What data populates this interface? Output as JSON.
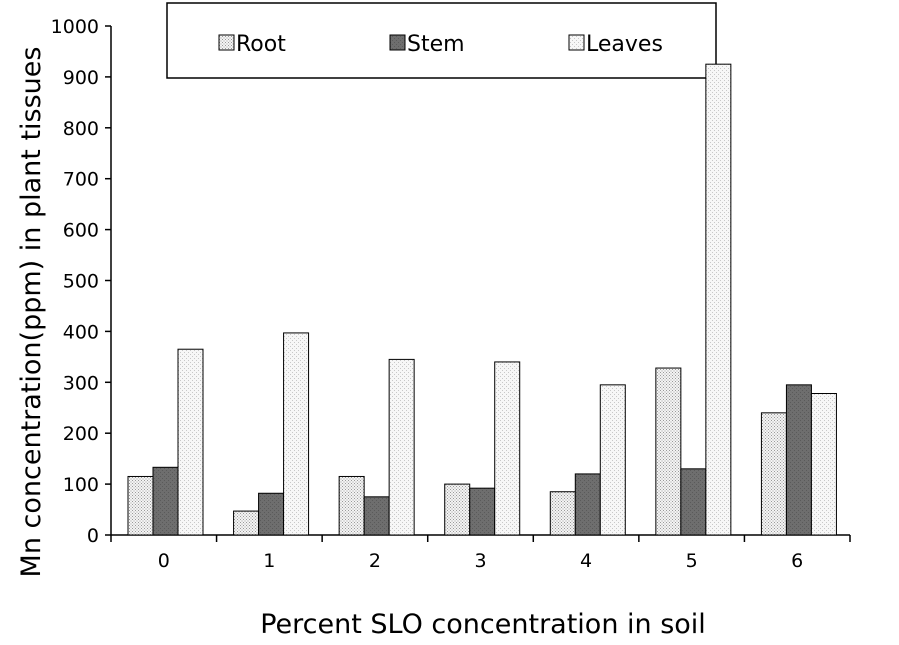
{
  "chart_data": {
    "type": "bar",
    "title": "",
    "xlabel": "Percent SLO concentration in soil",
    "ylabel": "Mn concentration(ppm) in plant tissues",
    "categories": [
      "0",
      "1",
      "2",
      "3",
      "4",
      "5",
      "6"
    ],
    "ylim": [
      0,
      1000
    ],
    "yticks": [
      "0",
      "100",
      "200",
      "300",
      "400",
      "500",
      "600",
      "700",
      "800",
      "900",
      "1000"
    ],
    "grid": false,
    "legend_position": "top",
    "series": [
      {
        "name": "Root",
        "values": [
          115,
          47,
          115,
          100,
          85,
          328,
          240
        ],
        "pattern": "dots-fine",
        "color": "#e6e6e6"
      },
      {
        "name": "Stem",
        "values": [
          133,
          82,
          75,
          92,
          120,
          130,
          295
        ],
        "pattern": "solid-dark",
        "color": "#666666"
      },
      {
        "name": "Leaves",
        "values": [
          365,
          397,
          345,
          340,
          295,
          925,
          278
        ],
        "pattern": "dots-light",
        "color": "#f0f0f0"
      }
    ]
  }
}
